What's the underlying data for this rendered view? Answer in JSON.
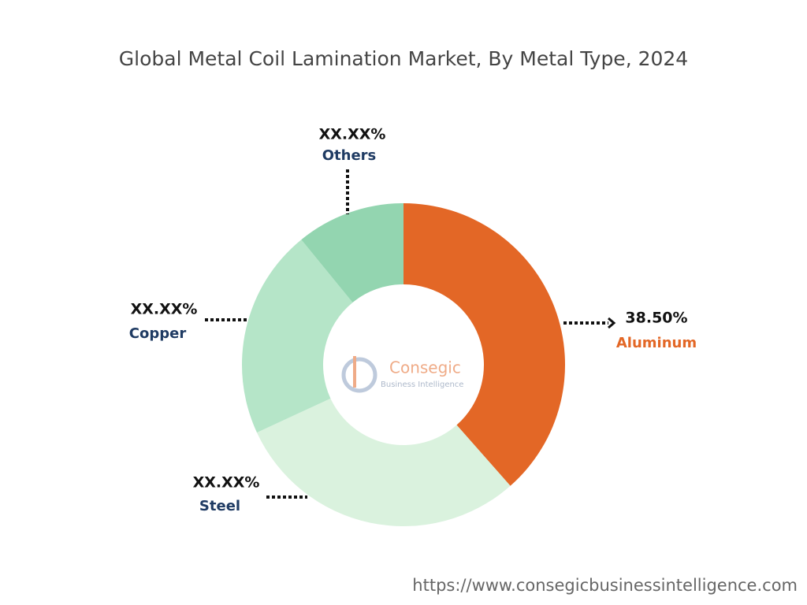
{
  "chart_data": {
    "type": "pie",
    "donut": true,
    "title": "Global Metal Coil Lamination Market, By Metal Type, 2024",
    "categories": [
      "Aluminum",
      "Steel",
      "Copper",
      "Others"
    ],
    "values": [
      38.5,
      29.6,
      21.0,
      10.9
    ],
    "value_labels": [
      "38.50%",
      "XX.XX%",
      "XX.XX%",
      "XX.XX%"
    ],
    "colors": [
      "#e36726",
      "#daf2de",
      "#b5e5c8",
      "#93d5b0"
    ],
    "label_colors": [
      "#e36726",
      "#1f3b63",
      "#1f3b63",
      "#1f3b63"
    ],
    "watermark_name": "Consegic",
    "watermark_tagline": "Business Intelligence",
    "source_url": "https://www.consegicbusinessintelligence.com"
  }
}
